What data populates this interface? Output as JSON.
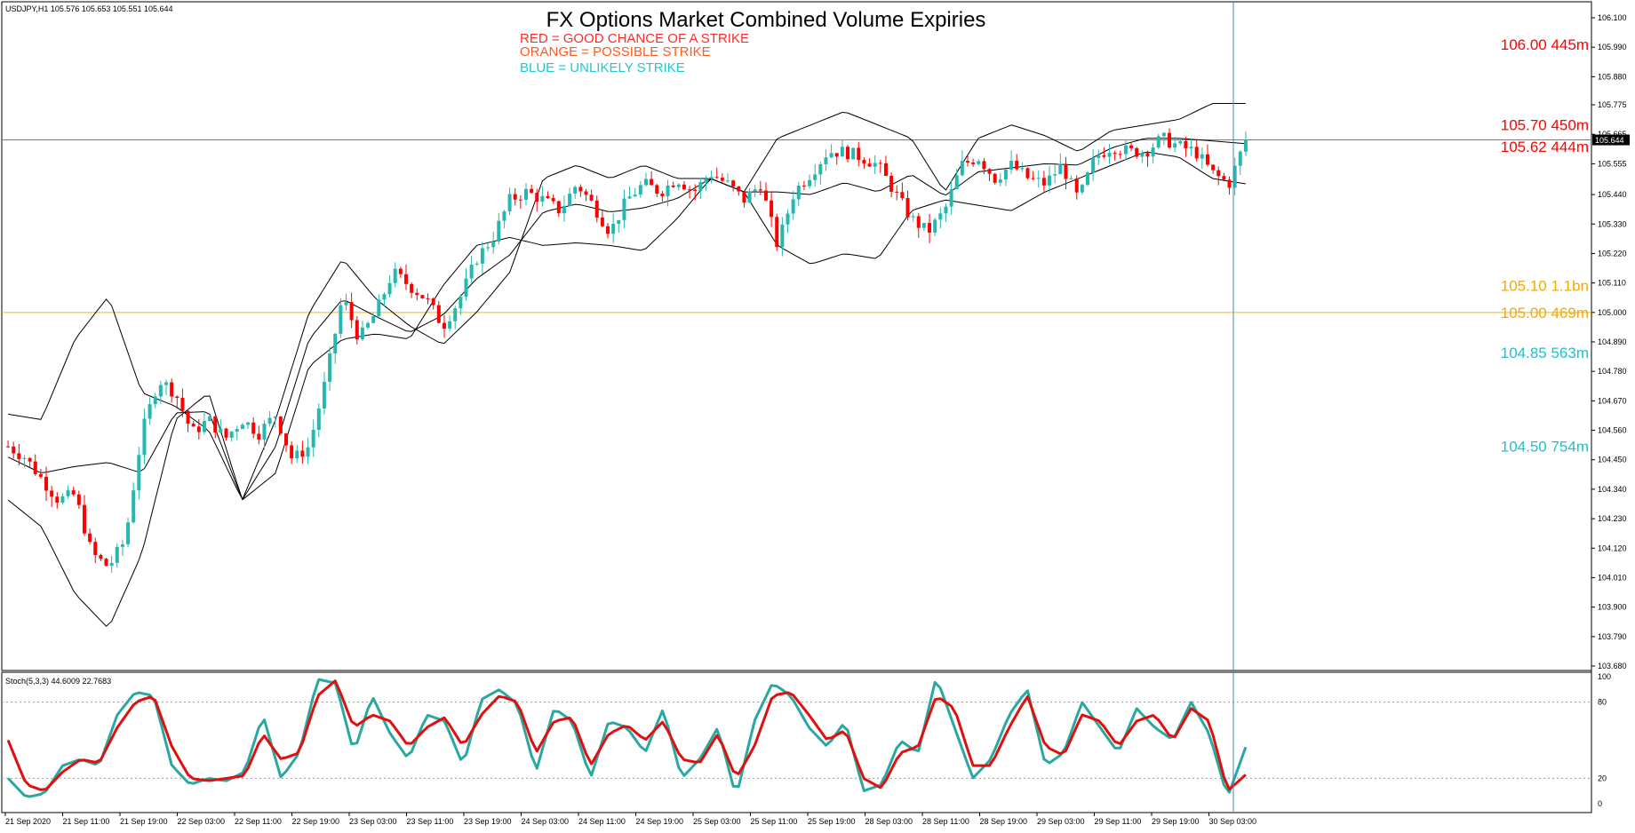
{
  "header": {
    "symbol_info": "USDJPY,H1  105.576 105.653 105.551 105.644",
    "title": "FX Options Market Combined Volume Expiries",
    "legend": [
      {
        "text": "RED = GOOD CHANCE OF A STRIKE",
        "color": "#ff2a2a"
      },
      {
        "text": "ORANGE = POSSIBLE STRIKE",
        "color": "#ff5a1e"
      },
      {
        "text": "BLUE = UNLIKELY STRIKE",
        "color": "#1ec8d2"
      }
    ]
  },
  "colors": {
    "bull": "#26b8b0",
    "bear": "#ff0000",
    "band": "#000000",
    "stoch_main": "#2aa8a0",
    "stoch_signal": "#e01010",
    "price_line": "#3a8fb7",
    "cursor_line": "#3a8fb7",
    "hline": "#f5b800",
    "grid_text": "#000000"
  },
  "chart_data": [
    {
      "type": "candlestick",
      "symbol": "USDJPY",
      "timeframe": "H1",
      "ylim": [
        103.68,
        106.08
      ],
      "y_ticks": [
        106.1,
        105.99,
        105.88,
        105.775,
        105.665,
        105.555,
        105.44,
        105.33,
        105.22,
        105.11,
        105.0,
        104.89,
        104.78,
        104.67,
        104.56,
        104.45,
        104.34,
        104.23,
        104.12,
        104.01,
        103.9,
        103.79,
        103.68
      ],
      "y_tick_labels": [
        "106.100",
        "105.990",
        "105.880",
        "105.775",
        "105.665",
        "105.555",
        "105.440",
        "105.330",
        "105.220",
        "105.110",
        "105.000",
        "104.890",
        "104.780",
        "104.670",
        "104.560",
        "104.450",
        "104.340",
        "104.230",
        "104.120",
        "104.010",
        "103.900",
        "103.790",
        "103.680"
      ],
      "x_tick_labels": [
        "21 Sep 2020",
        "21 Sep 11:00",
        "21 Sep 19:00",
        "22 Sep 03:00",
        "22 Sep 11:00",
        "22 Sep 19:00",
        "23 Sep 03:00",
        "23 Sep 11:00",
        "23 Sep 19:00",
        "24 Sep 03:00",
        "24 Sep 11:00",
        "24 Sep 19:00",
        "25 Sep 03:00",
        "25 Sep 11:00",
        "25 Sep 19:00",
        "28 Sep 03:00",
        "28 Sep 11:00",
        "28 Sep 19:00",
        "29 Sep 03:00",
        "29 Sep 11:00",
        "29 Sep 19:00",
        "30 Sep 03:00"
      ],
      "current_price": 105.644,
      "current_price_label": "105.644",
      "ohlc_anchor_closes": [
        104.5,
        104.46,
        104.38,
        104.3,
        104.32,
        104.1,
        104.05,
        104.15,
        104.55,
        104.75,
        104.7,
        104.55,
        104.6,
        104.53,
        104.6,
        104.55,
        104.62,
        104.45,
        104.5,
        104.75,
        105.06,
        104.9,
        105.0,
        105.15,
        105.1,
        105.05,
        104.95,
        105.05,
        105.2,
        105.28,
        105.42,
        105.45,
        105.42,
        105.38,
        105.48,
        105.4,
        105.3,
        105.42,
        105.48,
        105.45,
        105.5,
        105.45,
        105.52,
        105.48,
        105.42,
        105.48,
        105.25,
        105.45,
        105.52,
        105.6,
        105.6,
        105.58,
        105.55,
        105.45,
        105.35,
        105.3,
        105.38,
        105.55,
        105.58,
        105.5,
        105.55,
        105.5,
        105.48,
        105.55,
        105.42,
        105.58,
        105.62,
        105.6,
        105.6,
        105.65,
        105.62,
        105.6,
        105.52,
        105.48,
        105.644
      ],
      "bollinger": {
        "upper_anchor": [
          104.62,
          104.6,
          104.9,
          105.06,
          104.7,
          104.65,
          104.56,
          104.3,
          104.6,
          105.0,
          105.2,
          105.05,
          104.95,
          104.88,
          105.0,
          105.15,
          105.5,
          105.55,
          105.5,
          105.55,
          105.5,
          105.5,
          105.45,
          105.65,
          105.7,
          105.75,
          105.7,
          105.65,
          105.45,
          105.65,
          105.7,
          105.66,
          105.6,
          105.68,
          105.7,
          105.72,
          105.78,
          105.78
        ],
        "lower_anchor": [
          104.3,
          104.2,
          103.95,
          103.82,
          104.1,
          104.6,
          104.7,
          104.3,
          104.4,
          104.8,
          104.9,
          104.92,
          104.9,
          105.1,
          105.25,
          105.28,
          105.25,
          105.26,
          105.25,
          105.23,
          105.35,
          105.5,
          105.45,
          105.25,
          105.18,
          105.22,
          105.2,
          105.38,
          105.42,
          105.4,
          105.38,
          105.45,
          105.5,
          105.55,
          105.6,
          105.58,
          105.5,
          105.48
        ]
      },
      "annotations": [
        {
          "text": "106.00 445m",
          "price": 106.0,
          "color": "#ff0000"
        },
        {
          "text": "105.70 450m",
          "price": 105.7,
          "color": "#ff0000"
        },
        {
          "text": "105.62 444m",
          "price": 105.62,
          "color": "#ff0000"
        },
        {
          "text": "105.10 1.1bn",
          "price": 105.1,
          "color": "#f5a800"
        },
        {
          "text": "105.00 469m",
          "price": 105.0,
          "color": "#f5a800"
        },
        {
          "text": "104.85 563m",
          "price": 104.85,
          "color": "#20c0cc"
        },
        {
          "text": "104.50 754m",
          "price": 104.5,
          "color": "#20c0cc"
        }
      ],
      "horizontal_lines": [
        {
          "price": 105.0,
          "color": "#f5b800"
        },
        {
          "price": 105.644,
          "color": "#3a8fb7"
        }
      ]
    },
    {
      "type": "line",
      "indicator_label": "Stoch(5,3,3)  44.6009 22.7683",
      "ylim": [
        0,
        100
      ],
      "y_tick_labels": [
        "100",
        "80",
        "20",
        "0"
      ],
      "levels": [
        80,
        20
      ],
      "series": [
        {
          "name": "main",
          "values": [
            20,
            5,
            8,
            30,
            35,
            30,
            70,
            88,
            85,
            30,
            15,
            20,
            18,
            25,
            70,
            20,
            40,
            98,
            95,
            40,
            85,
            55,
            35,
            70,
            65,
            30,
            82,
            90,
            78,
            25,
            75,
            65,
            20,
            65,
            60,
            40,
            75,
            20,
            35,
            60,
            5,
            65,
            95,
            85,
            60,
            45,
            65,
            10,
            15,
            50,
            40,
            100,
            60,
            20,
            35,
            70,
            90,
            30,
            40,
            80,
            60,
            40,
            75,
            60,
            50,
            80,
            55,
            5,
            44.6
          ]
        },
        {
          "name": "signal",
          "values": [
            50,
            15,
            10,
            25,
            35,
            32,
            60,
            80,
            85,
            45,
            20,
            18,
            20,
            22,
            55,
            35,
            40,
            85,
            97,
            60,
            70,
            65,
            45,
            60,
            68,
            45,
            70,
            85,
            80,
            40,
            65,
            68,
            30,
            55,
            62,
            50,
            65,
            35,
            32,
            55,
            20,
            45,
            85,
            88,
            70,
            50,
            58,
            20,
            12,
            40,
            45,
            85,
            75,
            30,
            30,
            60,
            85,
            45,
            38,
            70,
            65,
            45,
            65,
            70,
            50,
            75,
            65,
            10,
            22.8
          ]
        }
      ]
    }
  ]
}
